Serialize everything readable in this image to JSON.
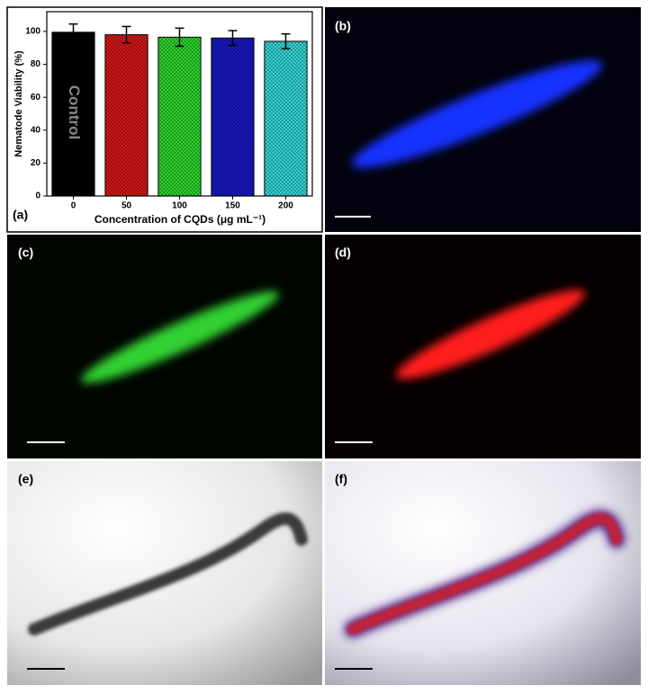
{
  "chart_data": {
    "type": "bar",
    "ylabel": "Nematode Viability (%)",
    "xlabel": "Concentration of CQDs (μg mL⁻¹)",
    "annotations": [
      "Control",
      "(a)"
    ],
    "categories": [
      "0",
      "50",
      "100",
      "150",
      "200"
    ],
    "values": [
      99.5,
      98,
      96.5,
      96,
      94
    ],
    "errors": [
      5,
      5,
      5.5,
      4.5,
      4.5
    ],
    "colors": [
      "#000000",
      "#e01818",
      "#2ee02e",
      "#1a1ad0",
      "#38e0e0"
    ],
    "ylim": [
      0,
      112
    ],
    "yticks": [
      0,
      20,
      40,
      60,
      80,
      100
    ]
  },
  "panel_labels": [
    "(b)",
    "(c)",
    "(d)",
    "(e)",
    "(f)"
  ]
}
